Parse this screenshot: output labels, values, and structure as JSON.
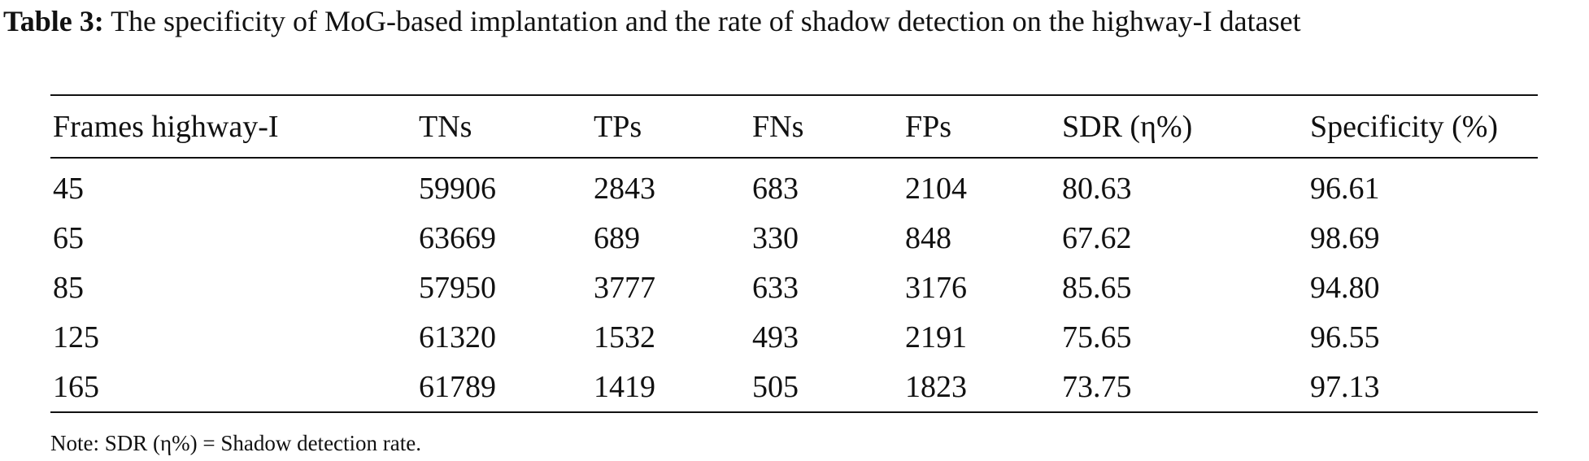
{
  "caption": {
    "label": "Table 3:",
    "text": "The specificity of MoG-based implantation and the rate of shadow detection on the highway-I dataset"
  },
  "table": {
    "header": [
      "Frames highway-I",
      "TNs",
      "TPs",
      "FNs",
      "FPs",
      "SDR (η%)",
      "Specificity (%)"
    ],
    "rows": [
      [
        "45",
        "59906",
        "2843",
        "683",
        "2104",
        "80.63",
        "96.61"
      ],
      [
        "65",
        "63669",
        "689",
        "330",
        "848",
        "67.62",
        "98.69"
      ],
      [
        "85",
        "57950",
        "3777",
        "633",
        "3176",
        "85.65",
        "94.80"
      ],
      [
        "125",
        "61320",
        "1532",
        "493",
        "2191",
        "75.65",
        "96.55"
      ],
      [
        "165",
        "61789",
        "1419",
        "505",
        "1823",
        "73.75",
        "97.13"
      ]
    ]
  },
  "note": "Note: SDR (η%) = Shadow detection rate."
}
